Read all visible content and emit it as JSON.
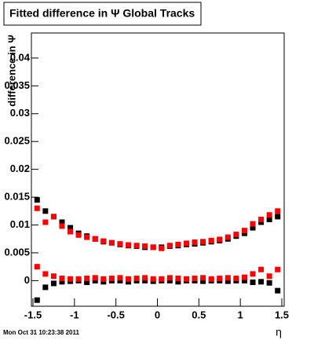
{
  "chart_data": {
    "type": "scatter",
    "title": "Fitted difference in  Ψ   Global Tracks",
    "y_label": "difference in Ψ",
    "x_label": "η",
    "footer": "Mon Oct 31 10:23:38 2011",
    "x": [
      -1.45,
      -1.35,
      -1.25,
      -1.15,
      -1.05,
      -0.95,
      -0.85,
      -0.75,
      -0.65,
      -0.55,
      -0.45,
      -0.35,
      -0.25,
      -0.15,
      -0.05,
      0.05,
      0.15,
      0.25,
      0.35,
      0.45,
      0.55,
      0.65,
      0.75,
      0.85,
      0.95,
      1.05,
      1.15,
      1.25,
      1.35,
      1.45
    ],
    "series": [
      {
        "color": "#000000",
        "values": [
          0.0145,
          0.0125,
          0.0115,
          0.0105,
          0.0095,
          0.0085,
          0.008,
          0.0075,
          0.007,
          0.0068,
          0.0065,
          0.0063,
          0.0062,
          0.006,
          0.006,
          0.006,
          0.0062,
          0.0063,
          0.0065,
          0.0066,
          0.0068,
          0.007,
          0.0072,
          0.0075,
          0.008,
          0.0085,
          0.0095,
          0.0105,
          0.011,
          0.0115
        ]
      },
      {
        "color": "#ff0000",
        "values": [
          0.013,
          0.0105,
          0.0115,
          0.0098,
          0.0088,
          0.0082,
          0.0078,
          0.0075,
          0.0071,
          0.0068,
          0.0066,
          0.0064,
          0.0063,
          0.0062,
          0.006,
          0.0058,
          0.0063,
          0.0065,
          0.0067,
          0.0069,
          0.007,
          0.0072,
          0.0074,
          0.0078,
          0.0083,
          0.009,
          0.0102,
          0.011,
          0.0118,
          0.0125
        ]
      },
      {
        "color": "#000000",
        "values": [
          -0.0035,
          -0.0012,
          -0.0005,
          -0.0002,
          -0.0001,
          0,
          -0.0003,
          0,
          -0.0002,
          0,
          0,
          -0.0002,
          0,
          0,
          -0.0001,
          0,
          0,
          -0.0002,
          0,
          0,
          -0.0001,
          0,
          0,
          -0.0001,
          0,
          0,
          -0.0003,
          -0.0002,
          -0.0004,
          -0.0018
        ]
      },
      {
        "color": "#ff0000",
        "values": [
          0.0025,
          0.0012,
          0.0008,
          0.0004,
          0.0003,
          0.0003,
          0.0004,
          0.0005,
          0.0003,
          0.0004,
          0.0005,
          0.0003,
          0.0004,
          0.0005,
          0.0003,
          0.0003,
          0.0005,
          0.0004,
          0.0003,
          0.0004,
          0.0005,
          0.0003,
          0.0004,
          0.0005,
          0.0004,
          0.0006,
          0.0012,
          0.002,
          0.0008,
          0.002
        ]
      }
    ],
    "xlim": [
      -1.5,
      1.5
    ],
    "ylim": [
      -0.0046,
      0.0445
    ],
    "xticks": [
      -1.5,
      -1,
      -0.5,
      0,
      0.5,
      1,
      1.5
    ],
    "yticks": [
      0,
      0.005,
      0.01,
      0.015,
      0.02,
      0.025,
      0.03,
      0.035,
      0.04
    ]
  }
}
